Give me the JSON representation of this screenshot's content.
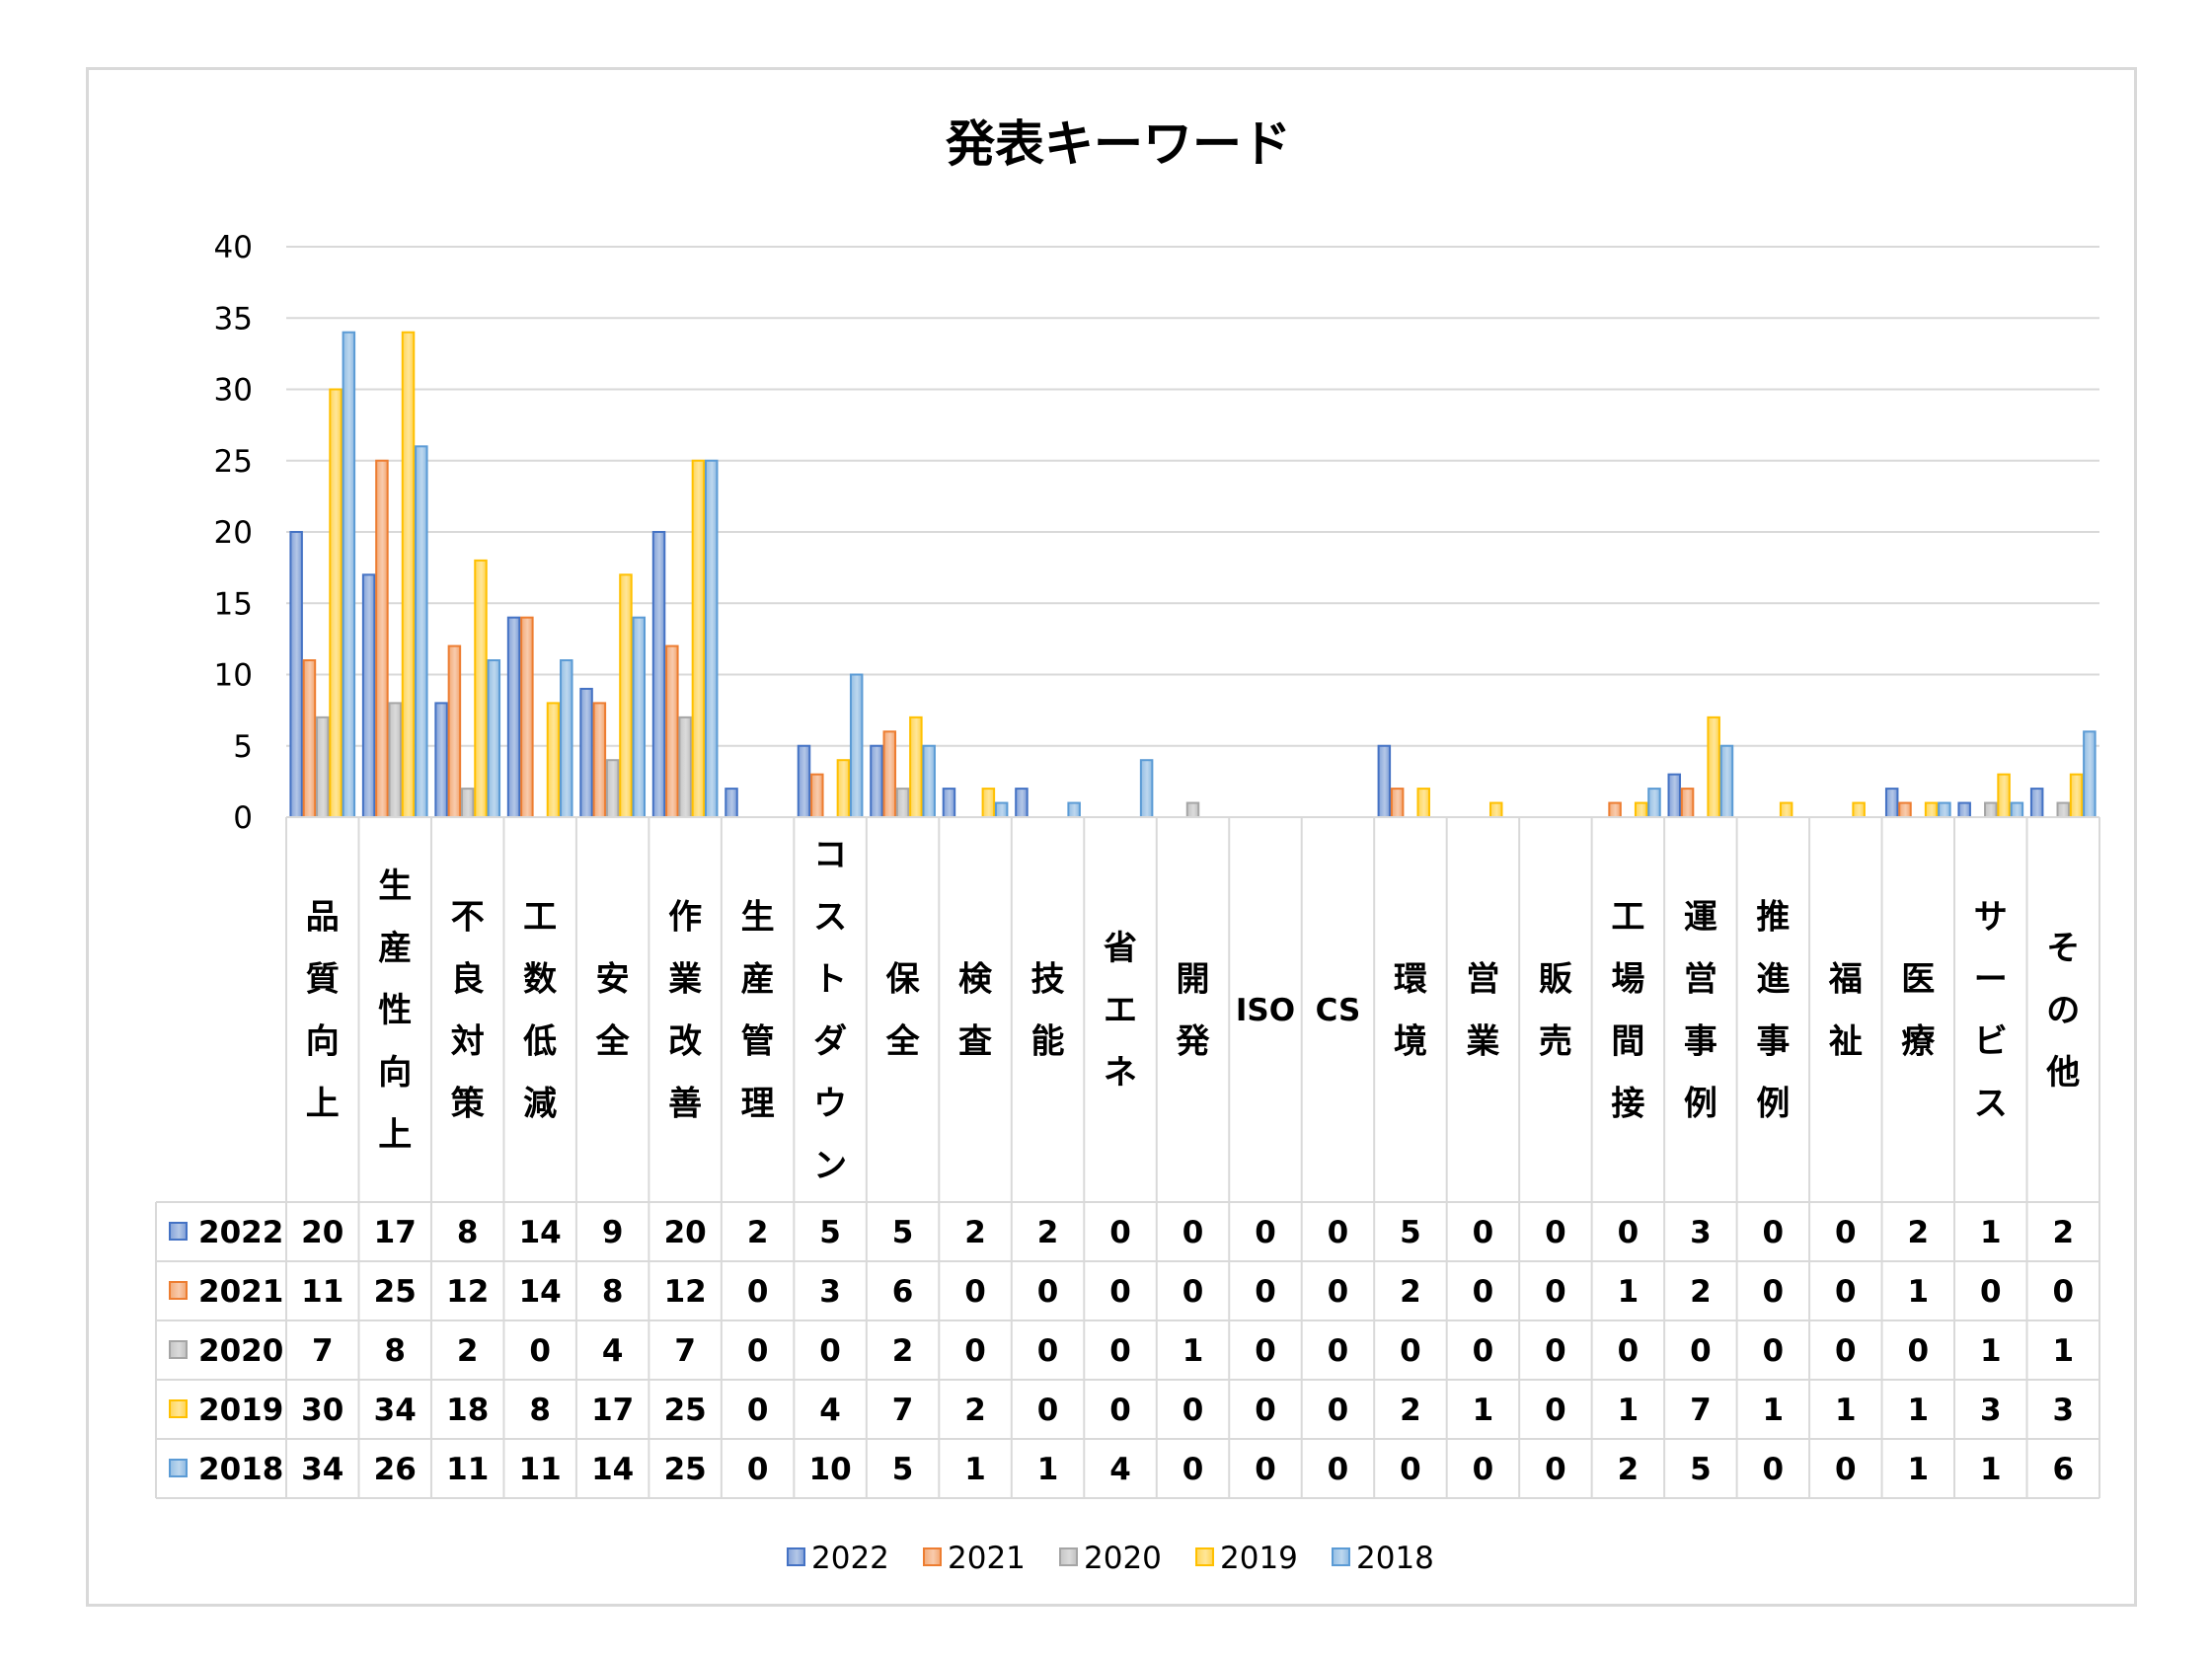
{
  "chart_data": {
    "type": "bar",
    "title": "発表キーワード",
    "ylim": [
      0,
      40
    ],
    "yticks": [
      0,
      5,
      10,
      15,
      20,
      25,
      30,
      35,
      40
    ],
    "grid": true,
    "legend_position": "bottom",
    "data_table": true,
    "categories": [
      "品質向上",
      "生産性向上",
      "不良対策",
      "工数低減",
      "安全",
      "作業改善",
      "生産管理",
      "コストダウン",
      "保全",
      "検査",
      "技能",
      "省エネ",
      "開発",
      "ISO",
      "CS",
      "環境",
      "営業",
      "販売",
      "工場間接",
      "運営事例",
      "推進事例",
      "福祉",
      "医療",
      "サービス",
      "その他"
    ],
    "series": [
      {
        "name": "2022",
        "color": "#4472c4",
        "values": [
          20,
          17,
          8,
          14,
          9,
          20,
          2,
          5,
          5,
          2,
          2,
          0,
          0,
          0,
          0,
          5,
          0,
          0,
          0,
          3,
          0,
          0,
          2,
          1,
          2
        ]
      },
      {
        "name": "2021",
        "color": "#ed7d31",
        "values": [
          11,
          25,
          12,
          14,
          8,
          12,
          0,
          3,
          6,
          0,
          0,
          0,
          0,
          0,
          0,
          2,
          0,
          0,
          1,
          2,
          0,
          0,
          1,
          0,
          0
        ]
      },
      {
        "name": "2020",
        "color": "#a5a5a5",
        "values": [
          7,
          8,
          2,
          0,
          4,
          7,
          0,
          0,
          2,
          0,
          0,
          0,
          1,
          0,
          0,
          0,
          0,
          0,
          0,
          0,
          0,
          0,
          0,
          1,
          1
        ]
      },
      {
        "name": "2019",
        "color": "#ffc000",
        "values": [
          30,
          34,
          18,
          8,
          17,
          25,
          0,
          4,
          7,
          2,
          0,
          0,
          0,
          0,
          0,
          2,
          1,
          0,
          1,
          7,
          1,
          1,
          1,
          3,
          3
        ]
      },
      {
        "name": "2018",
        "color": "#5b9bd5",
        "values": [
          34,
          26,
          11,
          11,
          14,
          25,
          0,
          10,
          5,
          1,
          1,
          4,
          0,
          0,
          0,
          0,
          0,
          0,
          2,
          5,
          0,
          0,
          1,
          1,
          6
        ]
      }
    ]
  }
}
